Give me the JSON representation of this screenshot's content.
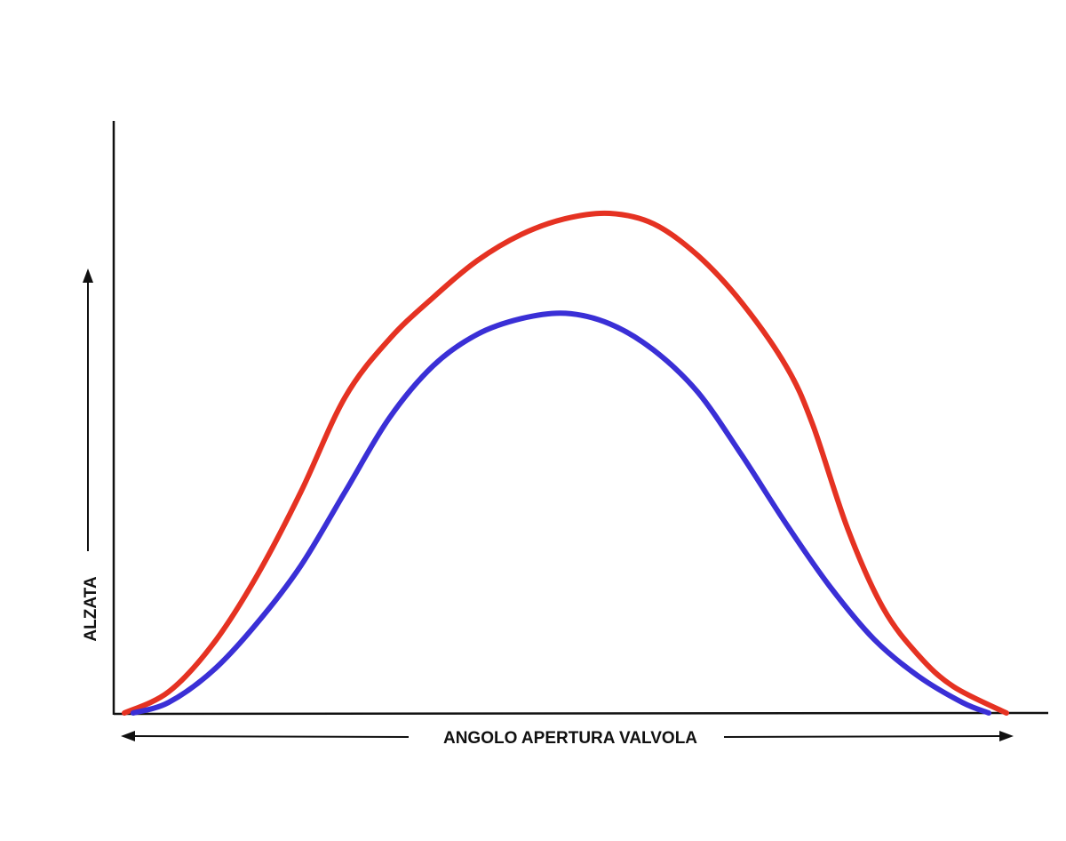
{
  "chart_data": {
    "type": "line",
    "title": "",
    "xlabel": "ANGOLO APERTURA VALVOLA",
    "ylabel": "ALZATA",
    "xlim": [
      0,
      100
    ],
    "ylim": [
      0,
      100
    ],
    "grid": false,
    "legend": "none",
    "series": [
      {
        "color": "#e53222",
        "x": [
          0,
          5,
          10,
          15,
          20,
          25,
          30,
          35,
          40,
          45,
          50,
          55,
          60,
          65,
          70,
          75,
          78,
          82,
          86,
          90,
          94,
          100
        ],
        "values": [
          0,
          4,
          13,
          26,
          42,
          60,
          71,
          79,
          86,
          91,
          94,
          95,
          93,
          87,
          78,
          66,
          55,
          35,
          20,
          11,
          5,
          0
        ]
      },
      {
        "color": "#3a2fd6",
        "x": [
          1,
          5,
          10,
          15,
          20,
          25,
          30,
          35,
          40,
          45,
          50,
          55,
          60,
          65,
          70,
          75,
          80,
          85,
          90,
          95,
          98
        ],
        "values": [
          0,
          2,
          8,
          17,
          28,
          42,
          56,
          66,
          72,
          75,
          76,
          74,
          69,
          61,
          49,
          36,
          24,
          14,
          7,
          2,
          0
        ]
      }
    ]
  }
}
